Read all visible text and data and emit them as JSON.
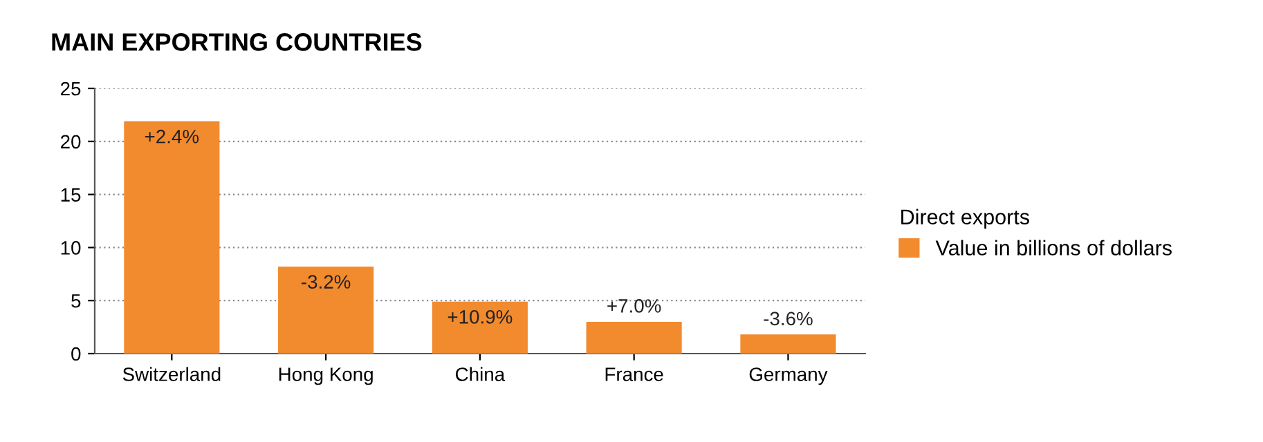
{
  "chart_data": {
    "type": "bar",
    "title": "MAIN EXPORTING COUNTRIES",
    "categories": [
      "Switzerland",
      "Hong Kong",
      "China",
      "France",
      "Germany"
    ],
    "series": [
      {
        "name": "Value in billions of dollars",
        "color": "#f28a2e",
        "values": [
          21.9,
          8.2,
          4.9,
          3.0,
          1.8
        ]
      }
    ],
    "annotations": [
      {
        "text": "+2.4%",
        "x": "Switzerland",
        "y": 21.9
      },
      {
        "text": "-3.2%",
        "x": "Hong Kong",
        "y": 8.2
      },
      {
        "text": "+10.9%",
        "x": "China",
        "y": 4.9
      },
      {
        "text": "+7.0%",
        "x": "France",
        "y": 3.0
      },
      {
        "text": "-3.6%",
        "x": "Germany",
        "y": 1.8
      }
    ],
    "legend_title": "Direct exports",
    "legend": "right",
    "ylim": [
      0,
      25
    ],
    "yticks": [
      0,
      5,
      10,
      15,
      20,
      25
    ],
    "grid": "y"
  }
}
